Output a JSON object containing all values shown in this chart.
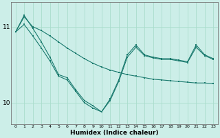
{
  "xlabel": "Humidex (Indice chaleur)",
  "background_color": "#cceee8",
  "grid_color": "#aaddcc",
  "line_color": "#1a7a6e",
  "x": [
    0,
    1,
    2,
    3,
    4,
    5,
    6,
    7,
    8,
    9,
    10,
    11,
    12,
    13,
    14,
    15,
    16,
    17,
    18,
    19,
    20,
    21,
    22,
    23
  ],
  "line1": [
    10.93,
    11.13,
    11.0,
    10.95,
    10.88,
    10.8,
    10.72,
    10.65,
    10.58,
    10.52,
    10.47,
    10.43,
    10.4,
    10.37,
    10.35,
    10.33,
    10.31,
    10.3,
    10.29,
    10.28,
    10.27,
    10.26,
    10.26,
    10.25
  ],
  "line2": [
    10.93,
    11.03,
    10.88,
    10.72,
    10.55,
    10.35,
    10.3,
    10.15,
    10.0,
    9.93,
    9.88,
    10.03,
    10.28,
    10.6,
    10.73,
    10.62,
    10.59,
    10.57,
    10.57,
    10.55,
    10.53,
    10.73,
    10.62,
    10.57
  ],
  "line3": [
    10.93,
    11.15,
    10.98,
    10.8,
    10.6,
    10.37,
    10.33,
    10.17,
    10.03,
    9.96,
    9.88,
    10.05,
    10.3,
    10.63,
    10.76,
    10.63,
    10.6,
    10.58,
    10.58,
    10.56,
    10.54,
    10.76,
    10.63,
    10.58
  ],
  "ylim": [
    9.72,
    11.32
  ],
  "ytick_vals": [
    10,
    11
  ],
  "ytick_labels": [
    "10",
    "11"
  ],
  "xlim": [
    -0.5,
    23.5
  ],
  "figsize": [
    3.2,
    2.0
  ],
  "dpi": 100
}
